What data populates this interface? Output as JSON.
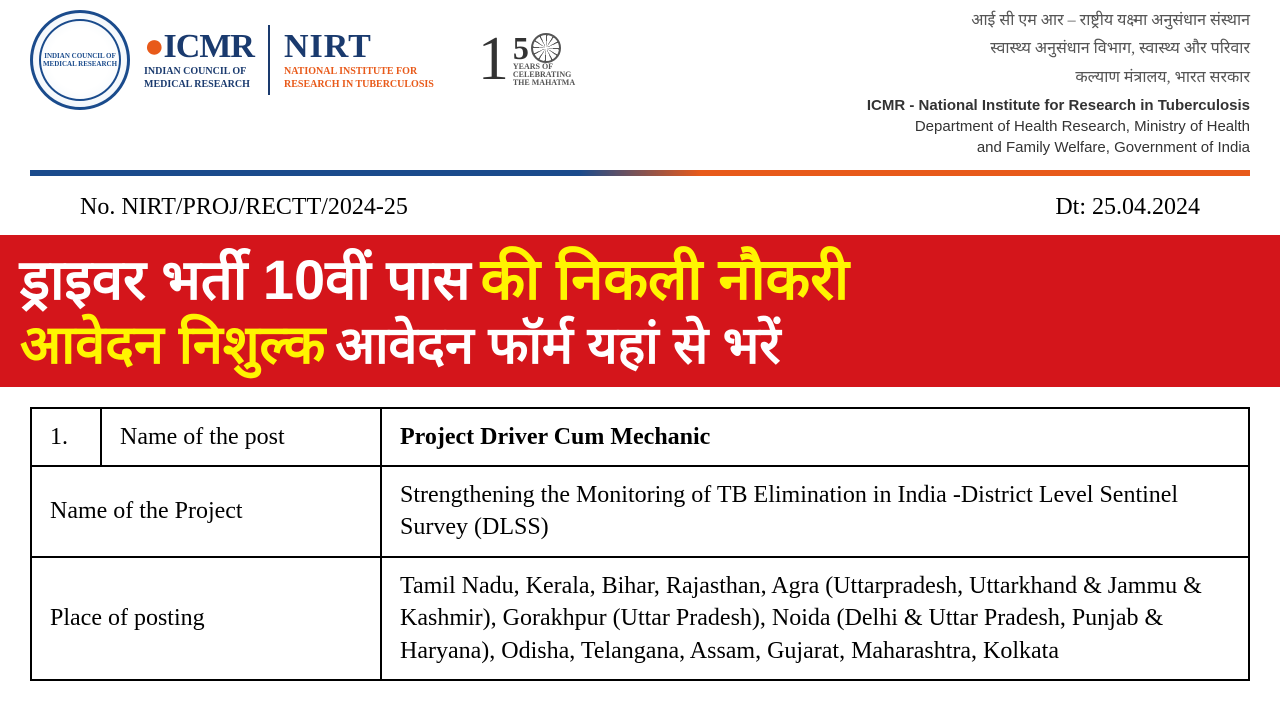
{
  "header": {
    "emblem_text": "INDIAN COUNCIL OF MEDICAL RESEARCH",
    "icmr": "ICMR",
    "icmr_sub1": "INDIAN COUNCIL OF",
    "icmr_sub2": "MEDICAL RESEARCH",
    "nirt": "NIRT",
    "nirt_sub1": "NATIONAL INSTITUTE FOR",
    "nirt_sub2": "RESEARCH IN TUBERCULOSIS",
    "mahatma_1": "1",
    "mahatma_5": "5",
    "mahatma_years": "YEARS OF",
    "mahatma_celeb": "CELEBRATING",
    "mahatma_name": "THE MAHATMA",
    "org_hindi1": "आई सी एम आर – राष्ट्रीय यक्ष्मा अनुसंधान संस्थान",
    "org_hindi2": "स्वास्थ्य अनुसंधान विभाग, स्वास्थ्य और परिवार",
    "org_hindi3": "कल्याण मंत्रालय, भारत सरकार",
    "org_en1": "ICMR - National Institute for Research in Tuberculosis",
    "org_en2": "Department of Health Research, Ministry of Health",
    "org_en3": "and Family Welfare, Government of India"
  },
  "ref": {
    "no": "No. NIRT/PROJ/RECTT/2024-25",
    "date": "Dt: 25.04.2024"
  },
  "banner": {
    "line1_white": "ड्राइवर भर्ती 10वीं पास",
    "line1_yellow": "की निकली नौकरी",
    "line2_yellow": "आवेदन निशुल्क",
    "line2_white": "आवेदन फॉर्म यहां से भरें"
  },
  "table": {
    "rows": [
      {
        "num": "1.",
        "label": "Name of the post",
        "value": "Project Driver Cum Mechanic",
        "bold_value": true,
        "has_num": true
      },
      {
        "label": "Name of the Project",
        "value": "Strengthening the Monitoring of TB Elimination in India -District Level Sentinel Survey (DLSS)",
        "has_num": false
      },
      {
        "label": "Place of posting",
        "value": "Tamil Nadu, Kerala, Bihar, Rajasthan, Agra (Uttarpradesh, Uttarkhand & Jammu & Kashmir), Gorakhpur (Uttar Pradesh), Noida (Delhi & Uttar Pradesh, Punjab & Haryana), Odisha, Telangana, Assam, Gujarat, Maharashtra, Kolkata",
        "has_num": false
      }
    ]
  },
  "colors": {
    "banner_bg": "#d4151b",
    "banner_yellow": "#fff500",
    "banner_white": "#ffffff",
    "primary_blue": "#1a4b8c",
    "accent_orange": "#e85a1a",
    "text": "#000000"
  }
}
